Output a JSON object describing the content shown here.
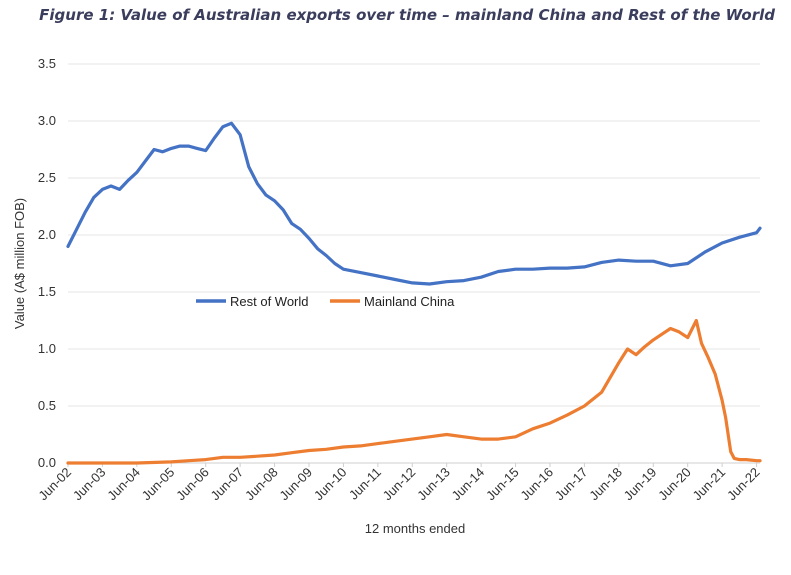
{
  "chart_data": {
    "type": "line",
    "title": "Figure 1: Value of Australian exports over time – mainland China and Rest of the World",
    "xlabel": "12 months ended",
    "ylabel": "Value (A$ million FOB)",
    "ylim": [
      0,
      3.5
    ],
    "yticks": [
      "0.0",
      "0.5",
      "1.0",
      "1.5",
      "2.0",
      "2.5",
      "3.0",
      "3.5"
    ],
    "xticks": [
      "Jun-02",
      "Jun-03",
      "Jun-04",
      "Jun-05",
      "Jun-06",
      "Jun-07",
      "Jun-08",
      "Jun-09",
      "Jun-10",
      "Jun-11",
      "Jun-12",
      "Jun-13",
      "Jun-14",
      "Jun-15",
      "Jun-16",
      "Jun-17",
      "Jun-18",
      "Jun-19",
      "Jun-20",
      "Jun-21",
      "Jun-22"
    ],
    "grid": "horizontal",
    "legend_position": "middle-left",
    "series": [
      {
        "name": "Rest of World",
        "color": "#4472c4",
        "x": [
          2002.0,
          2002.25,
          2002.5,
          2002.75,
          2003.0,
          2003.25,
          2003.5,
          2003.75,
          2004.0,
          2004.25,
          2004.5,
          2004.75,
          2005.0,
          2005.25,
          2005.5,
          2005.75,
          2006.0,
          2006.25,
          2006.5,
          2006.75,
          2007.0,
          2007.25,
          2007.5,
          2007.75,
          2008.0,
          2008.25,
          2008.5,
          2008.75,
          2009.0,
          2009.25,
          2009.5,
          2009.75,
          2010.0,
          2010.5,
          2011.0,
          2011.5,
          2012.0,
          2012.5,
          2013.0,
          2013.5,
          2014.0,
          2014.5,
          2015.0,
          2015.5,
          2016.0,
          2016.5,
          2017.0,
          2017.5,
          2018.0,
          2018.5,
          2019.0,
          2019.5,
          2020.0,
          2020.5,
          2021.0,
          2021.5,
          2022.0,
          2022.1
        ],
        "y": [
          1.9,
          2.05,
          2.2,
          2.33,
          2.4,
          2.43,
          2.4,
          2.48,
          2.55,
          2.65,
          2.75,
          2.73,
          2.76,
          2.78,
          2.78,
          2.76,
          2.74,
          2.85,
          2.95,
          2.98,
          2.88,
          2.6,
          2.45,
          2.35,
          2.3,
          2.22,
          2.1,
          2.05,
          1.97,
          1.88,
          1.82,
          1.75,
          1.7,
          1.67,
          1.64,
          1.61,
          1.58,
          1.57,
          1.59,
          1.6,
          1.63,
          1.68,
          1.7,
          1.7,
          1.71,
          1.71,
          1.72,
          1.76,
          1.78,
          1.77,
          1.77,
          1.73,
          1.75,
          1.85,
          1.93,
          1.98,
          2.02,
          2.06
        ]
      },
      {
        "name": "Mainland China",
        "color": "#ed7d31",
        "x": [
          2002.0,
          2003.0,
          2004.0,
          2005.0,
          2005.5,
          2006.0,
          2006.5,
          2007.0,
          2007.5,
          2008.0,
          2008.5,
          2009.0,
          2009.5,
          2010.0,
          2010.5,
          2011.0,
          2011.5,
          2012.0,
          2012.5,
          2013.0,
          2013.5,
          2014.0,
          2014.5,
          2015.0,
          2015.5,
          2016.0,
          2016.5,
          2017.0,
          2017.5,
          2018.0,
          2018.25,
          2018.5,
          2018.75,
          2019.0,
          2019.25,
          2019.5,
          2019.75,
          2020.0,
          2020.25,
          2020.4,
          2020.6,
          2020.8,
          2021.0,
          2021.1,
          2021.25,
          2021.35,
          2021.5,
          2021.7,
          2022.0,
          2022.1
        ],
        "y": [
          0.0,
          0.0,
          0.0,
          0.01,
          0.02,
          0.03,
          0.05,
          0.05,
          0.06,
          0.07,
          0.09,
          0.11,
          0.12,
          0.14,
          0.15,
          0.17,
          0.19,
          0.21,
          0.23,
          0.25,
          0.23,
          0.21,
          0.21,
          0.23,
          0.3,
          0.35,
          0.42,
          0.5,
          0.62,
          0.88,
          1.0,
          0.95,
          1.02,
          1.08,
          1.13,
          1.18,
          1.15,
          1.1,
          1.25,
          1.05,
          0.92,
          0.78,
          0.55,
          0.4,
          0.1,
          0.04,
          0.03,
          0.03,
          0.02,
          0.02
        ]
      }
    ]
  }
}
